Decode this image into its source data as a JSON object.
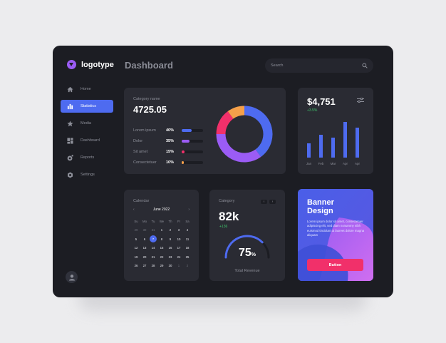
{
  "brand": {
    "name": "logotype"
  },
  "sidebar": {
    "items": [
      {
        "label": "Home",
        "icon": "home-icon",
        "active": false
      },
      {
        "label": "Statistics",
        "icon": "bar-chart-icon",
        "active": true
      },
      {
        "label": "Media",
        "icon": "star-icon",
        "active": false
      },
      {
        "label": "Dashboard",
        "icon": "grid-icon",
        "active": false
      },
      {
        "label": "Reports",
        "icon": "reports-icon",
        "active": false
      },
      {
        "label": "Settings",
        "icon": "gear-icon",
        "active": false
      }
    ]
  },
  "header": {
    "title": "Dashboard",
    "search_placeholder": "Search"
  },
  "category_card": {
    "label": "Category name",
    "value": "4725.05",
    "rows": [
      {
        "name": "Lorem ipsum",
        "pct": "40%",
        "fill": 0.45,
        "color": "#4e6bf0"
      },
      {
        "name": "Dolor",
        "pct": "35%",
        "fill": 0.38,
        "color": "#9b5cf5"
      },
      {
        "name": "Sit amet",
        "pct": "15%",
        "fill": 0.12,
        "color": "#f1306a"
      },
      {
        "name": "Consectetuer",
        "pct": "10%",
        "fill": 0.1,
        "color": "#f5a04a"
      }
    ]
  },
  "chart_data": {
    "type": "pie",
    "values": [
      40,
      35,
      15,
      10
    ],
    "categories": [
      "Lorem ipsum",
      "Dolor",
      "Sit amet",
      "Consectetuer"
    ],
    "colors": [
      "#4e6bf0",
      "#9b5cf5",
      "#f1306a",
      "#f5a04a"
    ]
  },
  "revenue_card": {
    "value": "$4,751",
    "trend": "+3.5%",
    "chart": {
      "type": "bar",
      "categories": [
        "Jan",
        "Feb",
        "Mar",
        "Apr",
        "Apr"
      ],
      "values": [
        20,
        32,
        28,
        50,
        42
      ],
      "color": "#4e6bf0"
    }
  },
  "calendar": {
    "label": "Calendar",
    "month": "June 2022",
    "prev": "‹",
    "next": "›",
    "weekdays": [
      "Su",
      "Mo",
      "Tu",
      "We",
      "Th",
      "Fr",
      "Sa"
    ],
    "days": [
      {
        "d": "29",
        "muted": true
      },
      {
        "d": "30",
        "muted": true
      },
      {
        "d": "31",
        "muted": true
      },
      {
        "d": "1"
      },
      {
        "d": "2"
      },
      {
        "d": "3"
      },
      {
        "d": "4"
      },
      {
        "d": "5"
      },
      {
        "d": "6"
      },
      {
        "d": "7",
        "selected": true
      },
      {
        "d": "8"
      },
      {
        "d": "9"
      },
      {
        "d": "10"
      },
      {
        "d": "11"
      },
      {
        "d": "12"
      },
      {
        "d": "13"
      },
      {
        "d": "14"
      },
      {
        "d": "15"
      },
      {
        "d": "16"
      },
      {
        "d": "17"
      },
      {
        "d": "18"
      },
      {
        "d": "19"
      },
      {
        "d": "20"
      },
      {
        "d": "21"
      },
      {
        "d": "22"
      },
      {
        "d": "23"
      },
      {
        "d": "24"
      },
      {
        "d": "25"
      },
      {
        "d": "26"
      },
      {
        "d": "27"
      },
      {
        "d": "28"
      },
      {
        "d": "29"
      },
      {
        "d": "30"
      },
      {
        "d": "1",
        "muted": true
      },
      {
        "d": "2",
        "muted": true
      }
    ]
  },
  "gauge_card": {
    "label": "Category",
    "prev": "‹",
    "next": "›",
    "value": "82k",
    "trend": "+136",
    "percent_value": "75",
    "percent_sign": "%",
    "percent": 0.75,
    "caption": "Total Revenue",
    "accent": "#4e6bf0"
  },
  "banner": {
    "title_line1": "Banner",
    "title_line2": "Design",
    "text": "Lorem ipsum dolor sit amet, consectetuer adipiscing elit, sed diam nonummy nibh euismod tincidunt ut laoreet dolore magna aliquam",
    "button": "Button"
  }
}
